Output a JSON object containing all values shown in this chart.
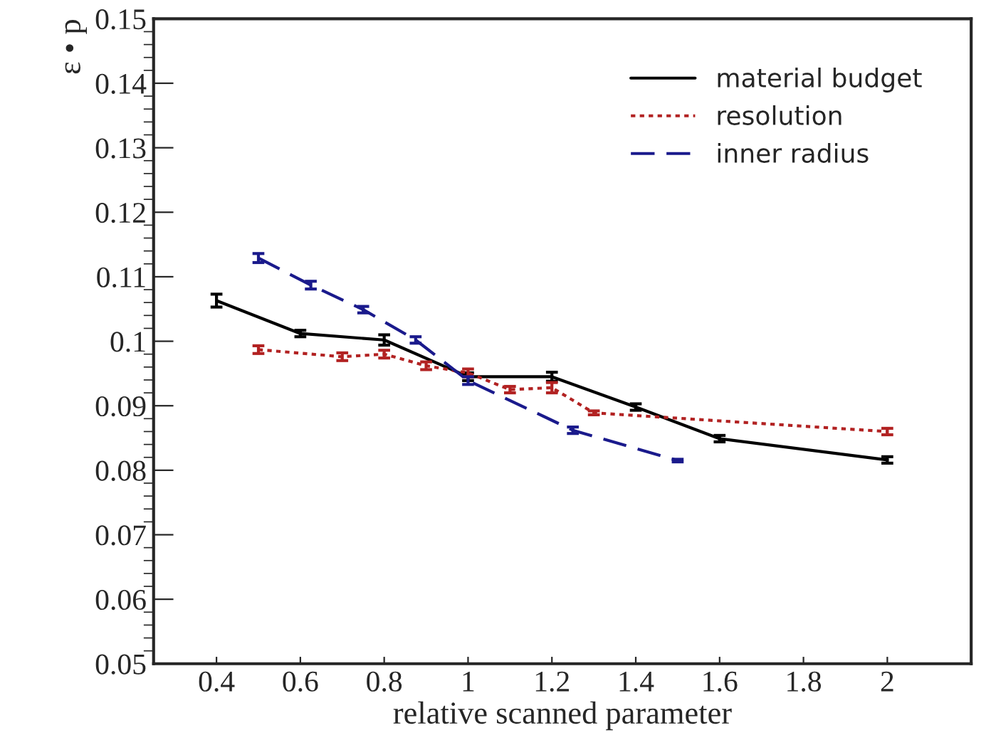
{
  "chart_data": {
    "type": "line",
    "xlabel": "relative scanned parameter",
    "ylabel": "ε • p",
    "xlim": [
      0.25,
      2.2
    ],
    "xticks": [
      {
        "value": 0.4,
        "label": "0.4"
      },
      {
        "value": 0.6,
        "label": "0.6"
      },
      {
        "value": 0.8,
        "label": "0.8"
      },
      1,
      {
        "value": 1.2,
        "label": "1.2"
      },
      {
        "value": 1.4,
        "label": "1.4"
      },
      {
        "value": 1.6,
        "label": "1.6"
      },
      {
        "value": 1.8,
        "label": "1.8"
      },
      2
    ],
    "ylim": [
      0.05,
      0.15
    ],
    "yticks": [
      {
        "value": 0.05,
        "label": "0.05"
      },
      {
        "value": 0.06,
        "label": "0.06"
      },
      {
        "value": 0.07,
        "label": "0.07"
      },
      {
        "value": 0.08,
        "label": "0.08"
      },
      {
        "value": 0.09,
        "label": "0.09"
      },
      {
        "value": 0.1,
        "label": "0.1"
      },
      {
        "value": 0.11,
        "label": "0.11"
      },
      {
        "value": 0.12,
        "label": "0.12"
      },
      {
        "value": 0.13,
        "label": "0.13"
      },
      {
        "value": 0.14,
        "label": "0.14"
      },
      {
        "value": 0.15,
        "label": "0.15"
      }
    ],
    "legend": "top right",
    "grid": false,
    "series": [
      {
        "name": "material budget",
        "color": "#000000",
        "line_style": "solid",
        "x": [
          0.4,
          0.6,
          0.8,
          1.0,
          1.2,
          1.4,
          1.6,
          2.0
        ],
        "values": [
          0.1063,
          0.1012,
          0.1002,
          0.0945,
          0.0945,
          0.0898,
          0.0849,
          0.0816
        ],
        "errors": [
          0.001,
          0.0005,
          0.0008,
          0.0006,
          0.0007,
          0.0005,
          0.0005,
          0.0005
        ]
      },
      {
        "name": "resolution",
        "color": "#b22222",
        "line_style": "dotted",
        "x": [
          0.5,
          0.7,
          0.8,
          0.9,
          1.0,
          1.1,
          1.2,
          1.3,
          2.0
        ],
        "values": [
          0.0987,
          0.0976,
          0.098,
          0.0962,
          0.0951,
          0.0925,
          0.0928,
          0.0889,
          0.086
        ],
        "errors": [
          0.0006,
          0.0006,
          0.0006,
          0.0006,
          0.0006,
          0.0005,
          0.0008,
          0.0003,
          0.0005
        ]
      },
      {
        "name": "inner radius",
        "color": "#1a1a8c",
        "line_style": "dashed",
        "x": [
          0.5,
          0.625,
          0.75,
          0.875,
          1.0,
          1.25,
          1.5
        ],
        "values": [
          0.1129,
          0.1087,
          0.1049,
          0.1002,
          0.0939,
          0.0862,
          0.0815
        ],
        "errors": [
          0.0007,
          0.0006,
          0.0005,
          0.0005,
          0.0006,
          0.0005,
          0.0002
        ]
      }
    ]
  }
}
